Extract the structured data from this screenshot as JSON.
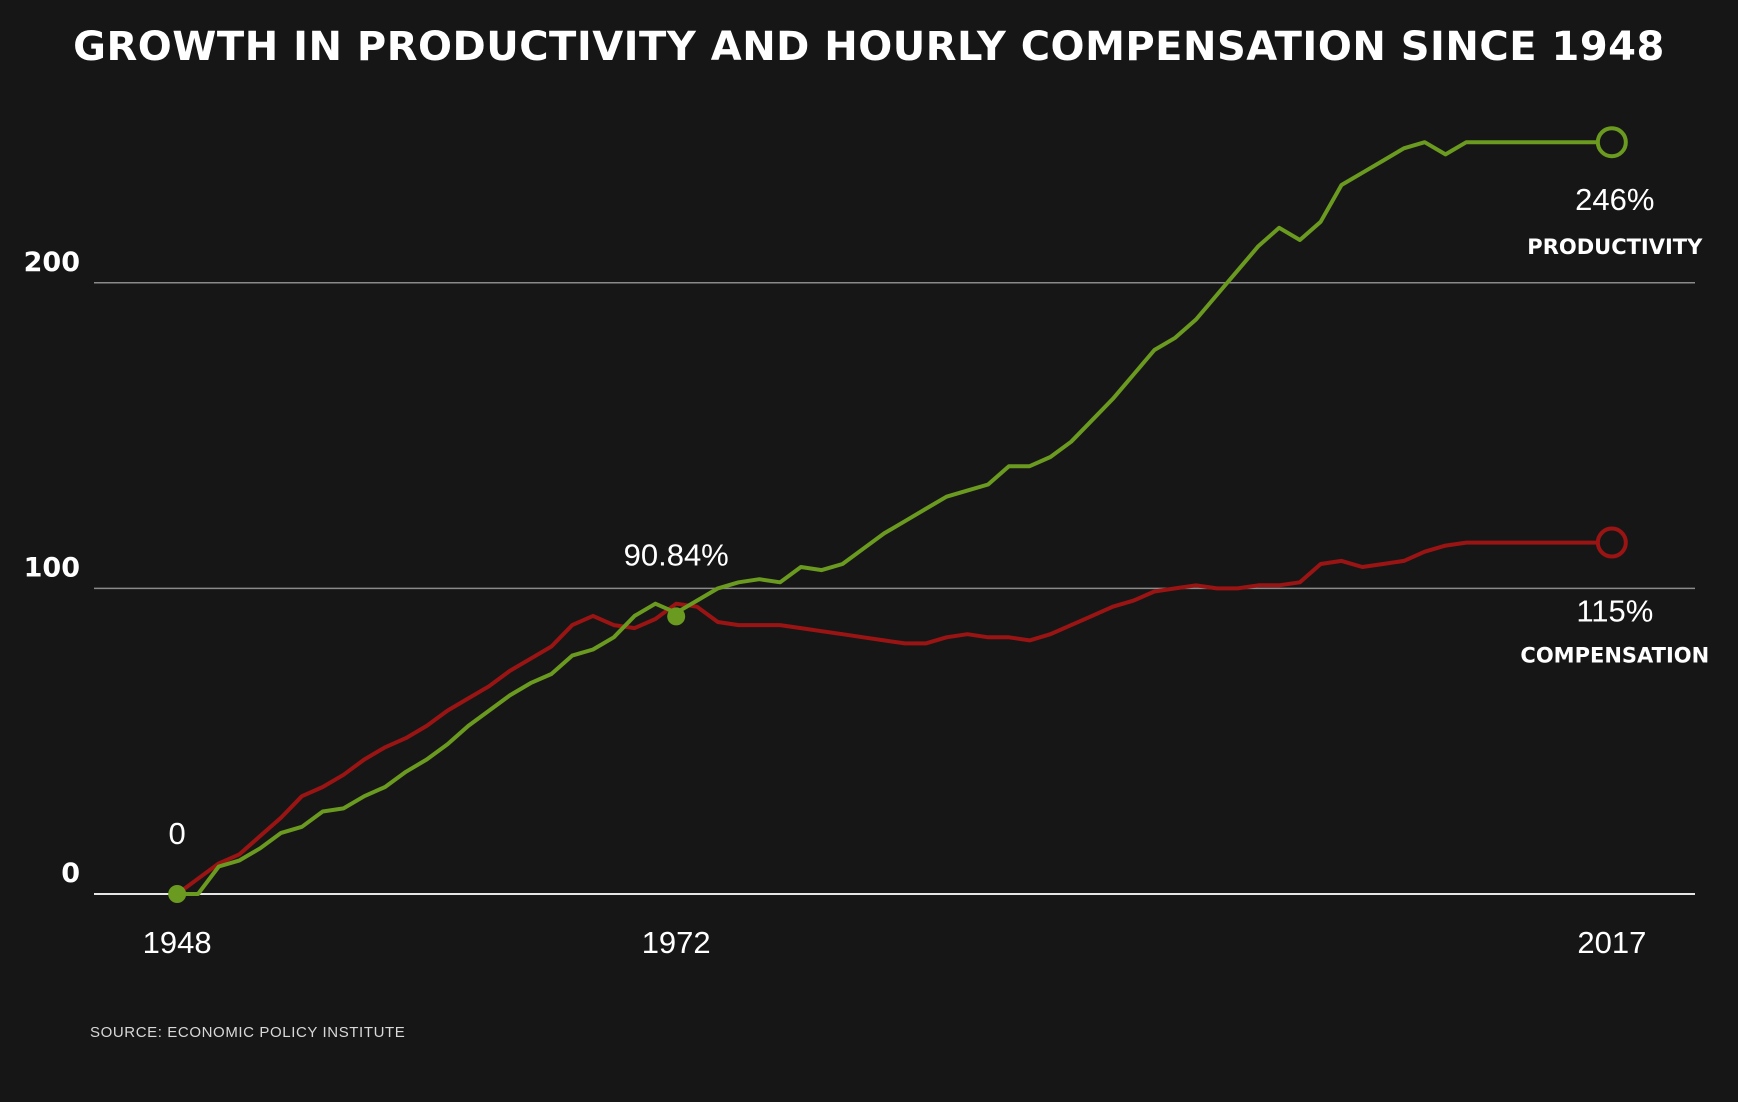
{
  "chart_data": {
    "type": "line",
    "title": "GROWTH IN PRODUCTIVITY AND HOURLY COMPENSATION SINCE 1948",
    "source": "SOURCE: ECONOMIC POLICY INSTITUTE",
    "xlabel": "",
    "ylabel": "",
    "xlim": [
      1944,
      2021
    ],
    "ylim": [
      0,
      250
    ],
    "x_ticks": [
      1948,
      1972,
      2017
    ],
    "x_tick_labels": [
      "1948",
      "1972",
      "2017"
    ],
    "y_ticks": [
      0,
      100,
      200
    ],
    "y_tick_labels": [
      "0",
      "100",
      "200"
    ],
    "grid": true,
    "series": [
      {
        "name": "PRODUCTIVITY",
        "color": "#6a9a1f",
        "end_label": "246%",
        "x": [
          1948,
          1949,
          1950,
          1951,
          1952,
          1953,
          1954,
          1955,
          1956,
          1957,
          1958,
          1959,
          1960,
          1961,
          1962,
          1963,
          1964,
          1965,
          1966,
          1967,
          1968,
          1969,
          1970,
          1971,
          1972,
          1973,
          1974,
          1975,
          1976,
          1977,
          1978,
          1979,
          1980,
          1981,
          1982,
          1983,
          1984,
          1985,
          1986,
          1987,
          1988,
          1989,
          1990,
          1991,
          1992,
          1993,
          1994,
          1995,
          1996,
          1997,
          1998,
          1999,
          2000,
          2001,
          2002,
          2003,
          2004,
          2005,
          2006,
          2007,
          2008,
          2009,
          2010,
          2011,
          2012,
          2013,
          2014,
          2015,
          2016,
          2017
        ],
        "values": [
          0,
          0,
          9,
          11,
          15,
          20,
          22,
          27,
          28,
          32,
          35,
          40,
          44,
          49,
          55,
          60,
          65,
          69,
          72,
          78,
          80,
          84,
          91,
          95,
          92,
          96,
          100,
          102,
          103,
          102,
          107,
          106,
          108,
          113,
          118,
          122,
          126,
          130,
          132,
          134,
          140,
          140,
          143,
          148,
          155,
          162,
          170,
          178,
          182,
          188,
          196,
          204,
          212,
          218,
          214,
          220,
          232,
          236,
          240,
          244,
          246,
          242,
          246,
          246,
          246,
          246,
          246,
          246,
          246,
          246
        ]
      },
      {
        "name": "COMPENSATION",
        "color": "#9a1414",
        "end_label": "115%",
        "x": [
          1948,
          1949,
          1950,
          1951,
          1952,
          1953,
          1954,
          1955,
          1956,
          1957,
          1958,
          1959,
          1960,
          1961,
          1962,
          1963,
          1964,
          1965,
          1966,
          1967,
          1968,
          1969,
          1970,
          1971,
          1972,
          1973,
          1974,
          1975,
          1976,
          1977,
          1978,
          1979,
          1980,
          1981,
          1982,
          1983,
          1984,
          1985,
          1986,
          1987,
          1988,
          1989,
          1990,
          1991,
          1992,
          1993,
          1994,
          1995,
          1996,
          1997,
          1998,
          1999,
          2000,
          2001,
          2002,
          2003,
          2004,
          2005,
          2006,
          2007,
          2008,
          2009,
          2010,
          2011,
          2012,
          2013,
          2014,
          2015,
          2016,
          2017
        ],
        "values": [
          0,
          5,
          10,
          13,
          19,
          25,
          32,
          35,
          39,
          44,
          48,
          51,
          55,
          60,
          64,
          68,
          73,
          77,
          81,
          88,
          91,
          88,
          87,
          90,
          95,
          94,
          89,
          88,
          88,
          88,
          87,
          86,
          85,
          84,
          83,
          82,
          82,
          84,
          85,
          84,
          84,
          83,
          85,
          88,
          91,
          94,
          96,
          99,
          100,
          101,
          100,
          100,
          101,
          101,
          102,
          108,
          109,
          107,
          108,
          109,
          112,
          114,
          115,
          115,
          115,
          115,
          115,
          115,
          115,
          115
        ]
      }
    ],
    "annotations": [
      {
        "text": "0",
        "x": 1948,
        "y": 0
      },
      {
        "text": "90.84%",
        "x": 1972,
        "y": 90.84
      }
    ]
  }
}
